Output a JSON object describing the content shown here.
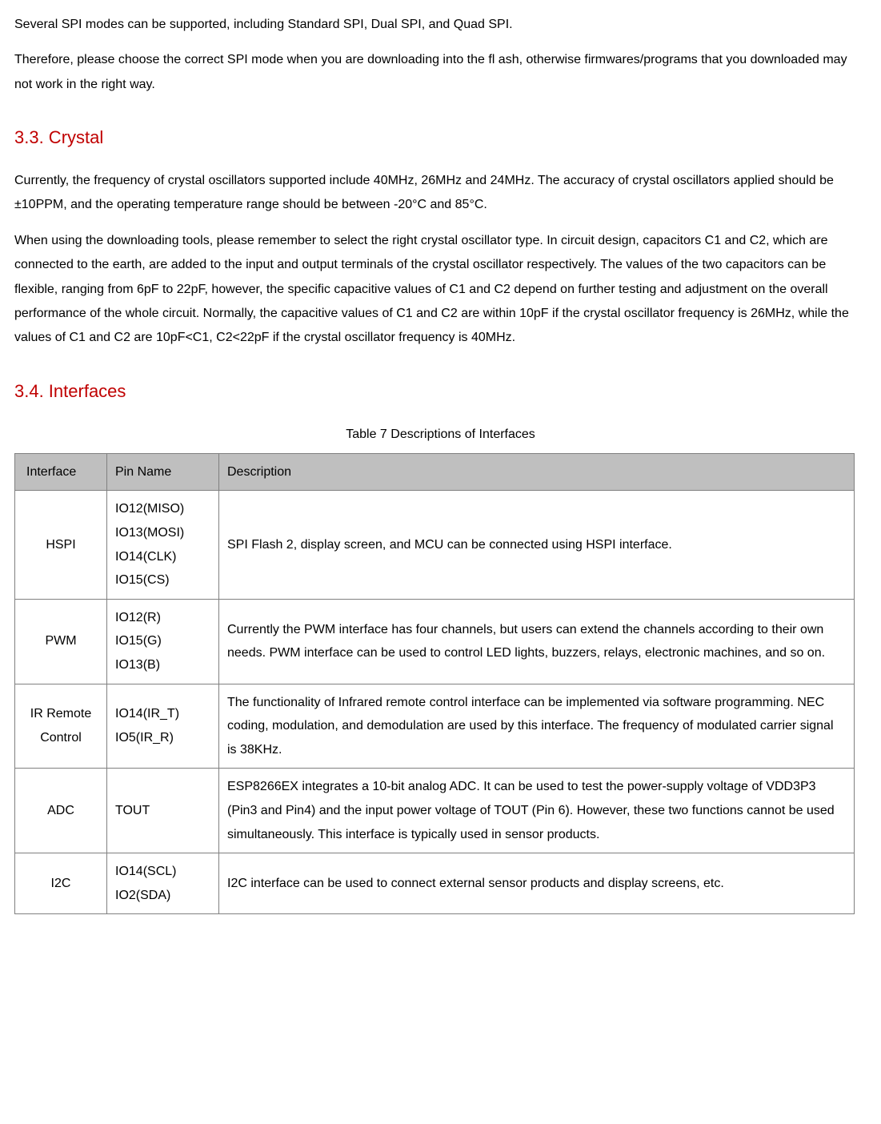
{
  "paragraphs": {
    "p1": "Several SPI modes can be supported, including Standard SPI, Dual SPI, and Quad SPI.",
    "p2": "Therefore, please choose the correct SPI mode when you are downloading into the ﬂ ash, otherwise firmwares/programs that you downloaded may not work in the right way.",
    "h33": "3.3. Crystal",
    "p3": "Currently, the frequency of crystal oscillators supported include 40MHz, 26MHz and 24MHz. The accuracy of crystal oscillators applied should be ±10PPM, and the operating temperature range should be between -20°C and 85°C.",
    "p4": "When using the downloading tools, please remember to select the right crystal oscillator type. In circuit design, capacitors C1 and C2, which are connected to the earth, are added to the input and output terminals of the crystal oscillator respectively. The values of the two capacitors can be flexible, ranging from 6pF to 22pF, however, the specific capacitive values of C1 and C2 depend on further testing and adjustment on the overall performance of the whole circuit. Normally, the capacitive values of C1 and C2 are within 10pF if the crystal oscillator frequency is 26MHz, while the values of C1 and C2 are 10pF<C1, C2<22pF if the crystal oscillator frequency is 40MHz.",
    "h34": "3.4. Interfaces",
    "tableCaption": "Table 7 Descriptions of Interfaces"
  },
  "table": {
    "headers": {
      "c0": "Interface",
      "c1": "Pin Name",
      "c2": "Description"
    },
    "rows": [
      {
        "interface": "HSPI",
        "pins": "IO12(MISO)\nIO13(MOSI)\nIO14(CLK)\nIO15(CS)",
        "desc": "SPI Flash 2, display screen, and MCU can be connected using HSPI interface."
      },
      {
        "interface": "PWM",
        "pins": "IO12(R)\nIO15(G)\nIO13(B)",
        "desc": "Currently the PWM interface has four channels, but users can extend the channels according to their own needs. PWM interface can be used to control LED lights, buzzers, relays, electronic machines, and so on."
      },
      {
        "interface": "IR Remote Control",
        "pins": "IO14(IR_T)\nIO5(IR_R)",
        "desc": "The functionality of Infrared remote control interface can be implemented via software programming. NEC coding, modulation, and demodulation are used by this interface. The frequency of modulated carrier signal is 38KHz."
      },
      {
        "interface": "ADC",
        "pins": "TOUT",
        "desc": "ESP8266EX integrates a 10-bit analog ADC. It can be used to test the power-supply voltage of VDD3P3 (Pin3 and Pin4) and the input power voltage of TOUT (Pin 6). However, these two functions cannot be used simultaneously. This interface is typically used in sensor products."
      },
      {
        "interface": "I2C",
        "pins": "IO14(SCL)\nIO2(SDA)",
        "desc": "I2C interface can be used to connect external sensor products and display screens, etc."
      }
    ]
  }
}
